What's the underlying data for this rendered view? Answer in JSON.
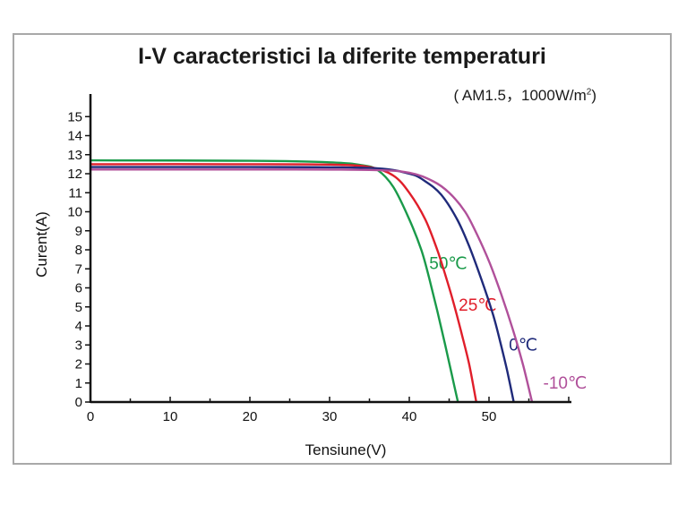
{
  "chart_data": {
    "type": "line",
    "title": "I-V caracteristici la diferite temperaturi",
    "subtitle_prefix": "( AM1.5，1000W/m",
    "subtitle_sup": "2",
    "subtitle_suffix": ")",
    "xlabel": "Tensiune(V)",
    "ylabel": "Curent(A)",
    "xlim": [
      0,
      60
    ],
    "ylim": [
      0,
      16
    ],
    "xticks": [
      0,
      10,
      20,
      30,
      40,
      50
    ],
    "yticks": [
      0,
      1,
      2,
      3,
      4,
      5,
      6,
      7,
      8,
      9,
      10,
      11,
      12,
      13,
      14,
      15
    ],
    "series": [
      {
        "name": "50℃",
        "color": "#1a9a4a",
        "label_at": [
          42.5,
          7
        ],
        "points": [
          [
            0,
            12.7
          ],
          [
            20,
            12.68
          ],
          [
            30,
            12.6
          ],
          [
            34,
            12.45
          ],
          [
            36,
            12.2
          ],
          [
            38,
            11.3
          ],
          [
            40,
            9.6
          ],
          [
            41.5,
            8
          ],
          [
            42.5,
            6.5
          ],
          [
            43.5,
            4.8
          ],
          [
            44.5,
            3
          ],
          [
            45.3,
            1.5
          ],
          [
            46.1,
            0
          ]
        ]
      },
      {
        "name": "25℃",
        "color": "#e01e2a",
        "label_at": [
          46.2,
          4.8
        ],
        "points": [
          [
            0,
            12.5
          ],
          [
            20,
            12.5
          ],
          [
            30,
            12.48
          ],
          [
            35,
            12.35
          ],
          [
            38,
            11.9
          ],
          [
            40,
            11.0
          ],
          [
            42,
            9.6
          ],
          [
            43.5,
            8.0
          ],
          [
            44.5,
            6.7
          ],
          [
            45.5,
            5.3
          ],
          [
            46.5,
            3.7
          ],
          [
            47.5,
            2.0
          ],
          [
            48.4,
            0
          ]
        ]
      },
      {
        "name": "0℃",
        "color": "#1f2a7a",
        "label_at": [
          52.5,
          2.7
        ],
        "points": [
          [
            0,
            12.35
          ],
          [
            20,
            12.35
          ],
          [
            35,
            12.3
          ],
          [
            40,
            12.0
          ],
          [
            42,
            11.6
          ],
          [
            44,
            10.9
          ],
          [
            46,
            9.6
          ],
          [
            47.5,
            8.2
          ],
          [
            49,
            6.5
          ],
          [
            50.5,
            4.6
          ],
          [
            51.5,
            3.0
          ],
          [
            52.3,
            1.6
          ],
          [
            53.1,
            0
          ]
        ]
      },
      {
        "name": "-10℃",
        "color": "#b0509a",
        "label_at": [
          56.8,
          0.7
        ],
        "points": [
          [
            0,
            12.22
          ],
          [
            20,
            12.22
          ],
          [
            35,
            12.2
          ],
          [
            40,
            12.05
          ],
          [
            43,
            11.6
          ],
          [
            45,
            11.0
          ],
          [
            47,
            10.0
          ],
          [
            48.5,
            8.8
          ],
          [
            50,
            7.4
          ],
          [
            51.5,
            5.7
          ],
          [
            53,
            3.8
          ],
          [
            54.3,
            1.9
          ],
          [
            55.4,
            0
          ]
        ]
      }
    ]
  }
}
